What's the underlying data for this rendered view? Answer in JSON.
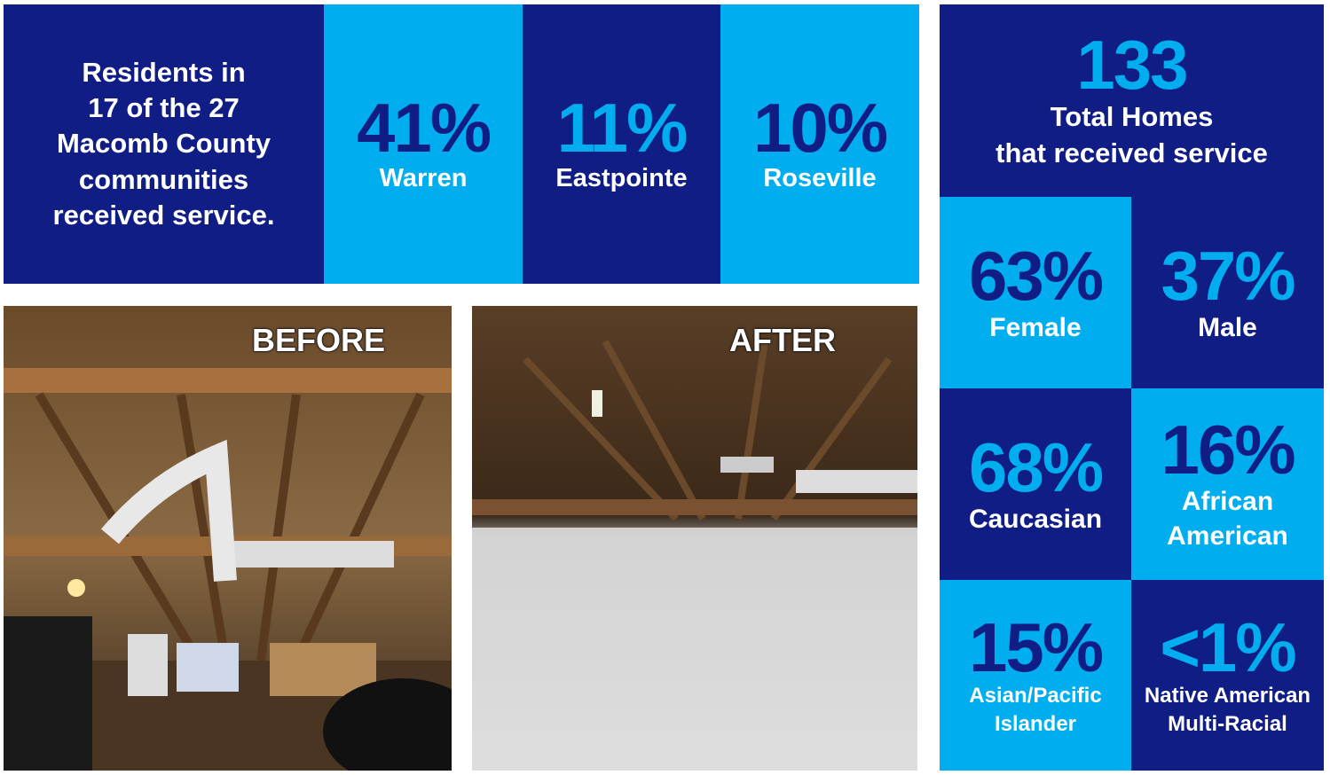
{
  "summary": {
    "lines": [
      "Residents in",
      "17 of the 27",
      "Macomb County",
      "communities",
      "received service."
    ]
  },
  "cities": [
    {
      "value": "41%",
      "label": "Warren"
    },
    {
      "value": "11%",
      "label": "Eastpointe"
    },
    {
      "value": "10%",
      "label": "Roseville"
    }
  ],
  "total": {
    "value": "133",
    "lines": [
      "Total Homes",
      "that received service"
    ]
  },
  "demographics": [
    {
      "value": "63%",
      "lines": [
        "Female"
      ]
    },
    {
      "value": "37%",
      "lines": [
        "Male"
      ]
    },
    {
      "value": "68%",
      "lines": [
        "Caucasian"
      ]
    },
    {
      "value": "16%",
      "lines": [
        "African",
        "American"
      ]
    },
    {
      "value": "15%",
      "lines": [
        "Asian/Pacific",
        "Islander"
      ]
    },
    {
      "value": "<1%",
      "lines": [
        "Native American",
        "Multi-Racial"
      ]
    }
  ],
  "photos": [
    {
      "label": "BEFORE"
    },
    {
      "label": "AFTER"
    }
  ]
}
